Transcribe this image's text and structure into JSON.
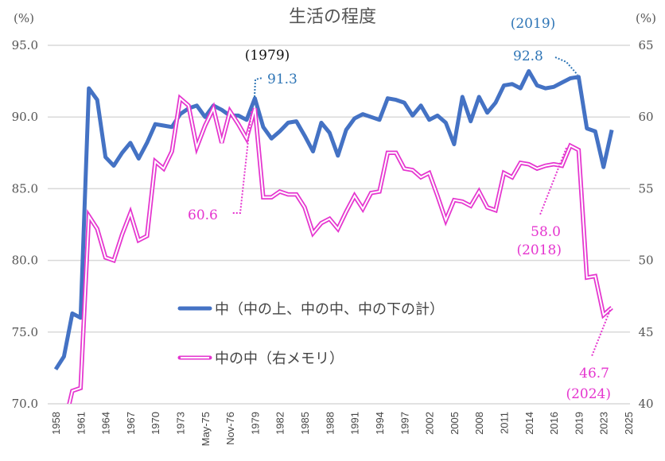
{
  "chart_data": {
    "type": "line",
    "title": "生活の程度",
    "left_axis": {
      "unit_label": "(%)",
      "ylim": [
        70,
        95
      ],
      "ticks": [
        "95.0",
        "90.0",
        "85.0",
        "80.0",
        "75.0",
        "70.0"
      ]
    },
    "right_axis": {
      "unit_label": "(%)",
      "ylim": [
        40,
        65
      ],
      "ticks": [
        "65",
        "60",
        "55",
        "50",
        "45",
        "40"
      ]
    },
    "grid": true,
    "legend_placement": "center",
    "categories": [
      "1958",
      "",
      "",
      "1961",
      "",
      "",
      "1964",
      "",
      "",
      "1967",
      "",
      "",
      "1970",
      "",
      "",
      "1973",
      "",
      "",
      "May-75",
      "",
      "",
      "Nov-76",
      "",
      "",
      "1979",
      "",
      "",
      "1982",
      "",
      "",
      "1985",
      "",
      "",
      "1988",
      "",
      "",
      "1991",
      "",
      "",
      "1994",
      "",
      "",
      "1997",
      "",
      "",
      "2002",
      "",
      "",
      "2005",
      "",
      "",
      "2008",
      "",
      "",
      "2011",
      "",
      "",
      "2014",
      "",
      "",
      "2016",
      "",
      "",
      "2019",
      "",
      "",
      "2023",
      "",
      "",
      "2025"
    ],
    "series": [
      {
        "name": "中（中の上、中の中、中の下の計）",
        "axis": "left",
        "color": "#4472c4",
        "values": [
          72.4,
          73.3,
          76.3,
          76.0,
          92.0,
          91.2,
          87.2,
          86.6,
          87.5,
          88.2,
          87.1,
          88.2,
          89.5,
          89.4,
          89.3,
          90.2,
          90.6,
          90.8,
          90.0,
          90.8,
          90.5,
          90.1,
          90.1,
          89.8,
          91.3,
          89.3,
          88.5,
          89.0,
          89.6,
          89.7,
          88.7,
          87.6,
          89.6,
          88.9,
          87.3,
          89.1,
          89.9,
          90.2,
          90.0,
          89.8,
          91.3,
          91.2,
          91.0,
          90.1,
          90.8,
          89.8,
          90.1,
          89.6,
          88.1,
          91.4,
          89.7,
          91.4,
          90.3,
          91.0,
          92.2,
          92.3,
          92.0,
          93.2,
          92.2,
          92.0,
          92.1,
          92.4,
          92.7,
          92.8,
          89.2,
          89.0,
          86.5,
          89.1,
          null,
          null
        ]
      },
      {
        "name": "中の中（右メモリ）",
        "axis": "right",
        "color": "#e535cf",
        "values": [
          null,
          38.4,
          40.9,
          41.1,
          53.1,
          52.2,
          50.2,
          50.0,
          51.8,
          53.3,
          51.4,
          51.7,
          56.9,
          56.4,
          57.6,
          61.3,
          60.8,
          57.9,
          59.4,
          60.6,
          58.2,
          60.4,
          59.5,
          58.5,
          60.6,
          54.4,
          54.4,
          54.8,
          54.6,
          54.6,
          53.7,
          51.9,
          52.6,
          52.9,
          52.2,
          53.4,
          54.5,
          53.6,
          54.7,
          54.8,
          57.5,
          57.5,
          56.4,
          56.3,
          55.8,
          56.1,
          54.5,
          52.8,
          54.2,
          54.1,
          53.8,
          54.8,
          53.7,
          53.5,
          56.1,
          55.8,
          56.8,
          56.7,
          56.4,
          56.6,
          56.7,
          56.6,
          58.0,
          57.7,
          48.8,
          48.9,
          46.2,
          46.7,
          null,
          null
        ]
      }
    ],
    "annotations": {
      "y1979": "(1979)",
      "v1979_blue": "91.3",
      "v1979_pink": "60.6",
      "y2019": "(2019)",
      "v2019_blue": "92.8",
      "v2018_pink": "58.0",
      "y2018": "(2018)",
      "v2024_pink": "46.7",
      "y2024": "(2024)"
    }
  }
}
